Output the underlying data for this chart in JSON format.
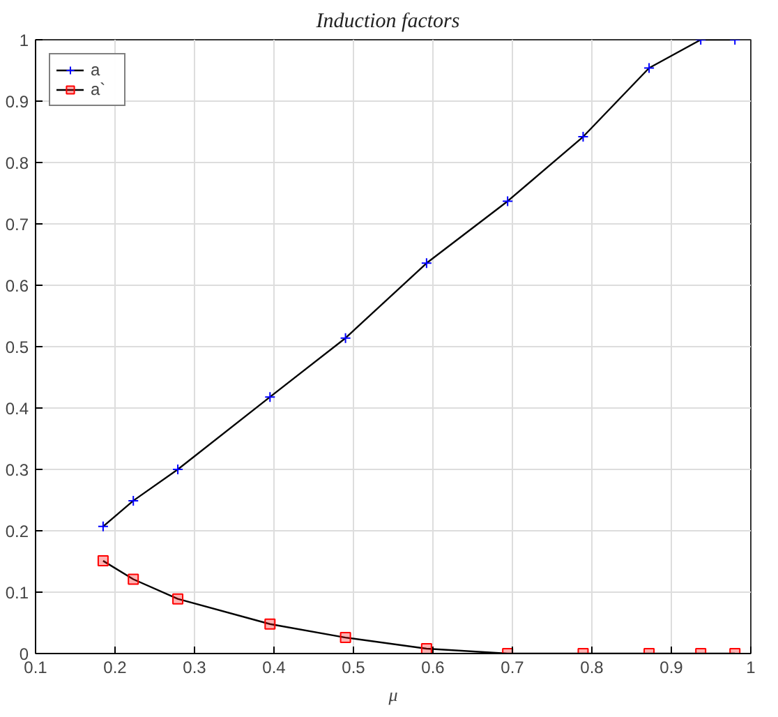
{
  "chart_data": {
    "type": "line",
    "title": "Induction   factors",
    "xlabel": "μ",
    "x": [
      0.185,
      0.223,
      0.279,
      0.395,
      0.49,
      0.592,
      0.694,
      0.789,
      0.872,
      0.937,
      0.98
    ],
    "series": [
      {
        "name": "a",
        "color": "#0000ff",
        "marker": "cross",
        "values": [
          0.207,
          0.249,
          0.3,
          0.418,
          0.514,
          0.636,
          0.737,
          0.842,
          0.954,
          1,
          1
        ]
      },
      {
        "name": "a`",
        "color": "#ff0000",
        "marker": "square",
        "values": [
          0.151,
          0.121,
          0.089,
          0.048,
          0.026,
          0.008,
          0,
          0,
          0,
          0,
          0
        ]
      }
    ],
    "xlim": [
      0.1,
      1
    ],
    "ylim": [
      0,
      1
    ],
    "xticks": [
      0.1,
      0.2,
      0.3,
      0.4,
      0.5,
      0.6,
      0.7,
      0.8,
      0.9,
      1
    ],
    "yticks": [
      0,
      0.1,
      0.2,
      0.3,
      0.4,
      0.5,
      0.6,
      0.7,
      0.8,
      0.9,
      1
    ],
    "grid": true,
    "legend": "top left",
    "line_style": "solid"
  }
}
